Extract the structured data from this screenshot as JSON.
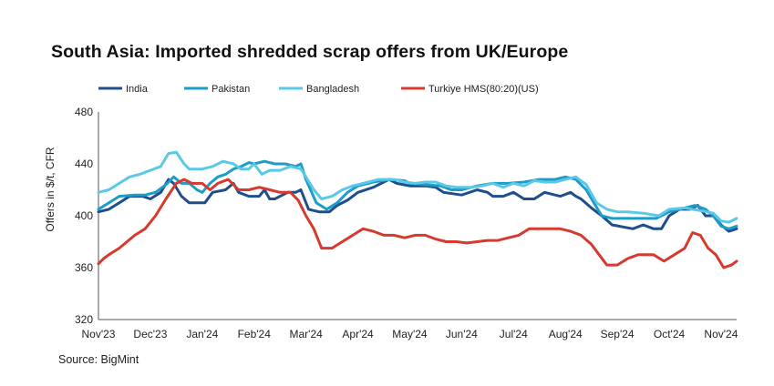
{
  "chart_data": {
    "type": "line",
    "title": "South Asia: Imported shredded scrap offers from UK/Europe",
    "ylabel": "Offers in $/t, CFR",
    "xlabel": "",
    "source": "Source: BigMint",
    "ylim": [
      320,
      480
    ],
    "yticks": [
      320,
      360,
      400,
      440,
      480
    ],
    "xlim": [
      0,
      12.3
    ],
    "xticks": [
      {
        "x": 0,
        "label": "Nov'23"
      },
      {
        "x": 1,
        "label": "Dec'23"
      },
      {
        "x": 2,
        "label": "Jan'24"
      },
      {
        "x": 3,
        "label": "Feb'24"
      },
      {
        "x": 4,
        "label": "Mar'24"
      },
      {
        "x": 5,
        "label": "Apr'24"
      },
      {
        "x": 6,
        "label": "May'24"
      },
      {
        "x": 7,
        "label": "Jun'24"
      },
      {
        "x": 8,
        "label": "Jul'24"
      },
      {
        "x": 9,
        "label": "Aug'24"
      },
      {
        "x": 10,
        "label": "Sep'24"
      },
      {
        "x": 11,
        "label": "Oct'24"
      },
      {
        "x": 12,
        "label": "Nov'24"
      }
    ],
    "legend_position": "top",
    "grid": false,
    "series": [
      {
        "name": "India",
        "color": "#1f4e8c",
        "points": [
          [
            0,
            403
          ],
          [
            0.2,
            405
          ],
          [
            0.4,
            410
          ],
          [
            0.6,
            415
          ],
          [
            0.85,
            415
          ],
          [
            1.0,
            413
          ],
          [
            1.2,
            418
          ],
          [
            1.35,
            428
          ],
          [
            1.45,
            425
          ],
          [
            1.6,
            415
          ],
          [
            1.75,
            410
          ],
          [
            2.05,
            410
          ],
          [
            2.2,
            418
          ],
          [
            2.45,
            420
          ],
          [
            2.6,
            425
          ],
          [
            2.7,
            418
          ],
          [
            2.9,
            415
          ],
          [
            3.1,
            415
          ],
          [
            3.2,
            420
          ],
          [
            3.3,
            413
          ],
          [
            3.4,
            413
          ],
          [
            3.5,
            415
          ],
          [
            3.65,
            418
          ],
          [
            3.8,
            418
          ],
          [
            3.9,
            420
          ],
          [
            4.05,
            405
          ],
          [
            4.25,
            403
          ],
          [
            4.45,
            403
          ],
          [
            4.6,
            408
          ],
          [
            4.8,
            412
          ],
          [
            5.0,
            418
          ],
          [
            5.3,
            422
          ],
          [
            5.6,
            428
          ],
          [
            5.75,
            425
          ],
          [
            6.0,
            423
          ],
          [
            6.3,
            423
          ],
          [
            6.5,
            422
          ],
          [
            6.65,
            418
          ],
          [
            7.0,
            416
          ],
          [
            7.3,
            420
          ],
          [
            7.5,
            418
          ],
          [
            7.6,
            415
          ],
          [
            7.8,
            415
          ],
          [
            8.0,
            418
          ],
          [
            8.2,
            413
          ],
          [
            8.4,
            413
          ],
          [
            8.6,
            418
          ],
          [
            8.9,
            415
          ],
          [
            9.1,
            418
          ],
          [
            9.2,
            415
          ],
          [
            9.3,
            413
          ],
          [
            9.5,
            406
          ],
          [
            9.7,
            400
          ],
          [
            9.9,
            393
          ],
          [
            10.3,
            390
          ],
          [
            10.5,
            393
          ],
          [
            10.7,
            390
          ],
          [
            10.85,
            390
          ],
          [
            11.0,
            400
          ],
          [
            11.2,
            405
          ],
          [
            11.4,
            405
          ],
          [
            11.55,
            408
          ],
          [
            11.7,
            400
          ],
          [
            11.85,
            400
          ],
          [
            12.0,
            393
          ],
          [
            12.15,
            388
          ],
          [
            12.3,
            390
          ]
        ]
      },
      {
        "name": "Pakistan",
        "color": "#1e9cc9",
        "points": [
          [
            0,
            405
          ],
          [
            0.2,
            410
          ],
          [
            0.4,
            415
          ],
          [
            0.7,
            416
          ],
          [
            0.9,
            416
          ],
          [
            1.1,
            418
          ],
          [
            1.3,
            424
          ],
          [
            1.45,
            430
          ],
          [
            1.6,
            425
          ],
          [
            1.75,
            425
          ],
          [
            1.9,
            420
          ],
          [
            2.0,
            418
          ],
          [
            2.15,
            425
          ],
          [
            2.3,
            430
          ],
          [
            2.45,
            432
          ],
          [
            2.6,
            436
          ],
          [
            2.75,
            438
          ],
          [
            2.9,
            441
          ],
          [
            3.0,
            440
          ],
          [
            3.2,
            442
          ],
          [
            3.4,
            440
          ],
          [
            3.6,
            440
          ],
          [
            3.8,
            438
          ],
          [
            3.9,
            440
          ],
          [
            4.0,
            428
          ],
          [
            4.2,
            410
          ],
          [
            4.4,
            405
          ],
          [
            4.6,
            410
          ],
          [
            4.8,
            418
          ],
          [
            5.0,
            423
          ],
          [
            5.3,
            426
          ],
          [
            5.6,
            428
          ],
          [
            5.9,
            427
          ],
          [
            6.0,
            425
          ],
          [
            6.3,
            424
          ],
          [
            6.6,
            423
          ],
          [
            6.8,
            420
          ],
          [
            7.0,
            420
          ],
          [
            7.3,
            423
          ],
          [
            7.6,
            425
          ],
          [
            7.9,
            425
          ],
          [
            8.2,
            426
          ],
          [
            8.5,
            428
          ],
          [
            8.8,
            428
          ],
          [
            9.0,
            430
          ],
          [
            9.2,
            428
          ],
          [
            9.4,
            420
          ],
          [
            9.55,
            410
          ],
          [
            9.7,
            400
          ],
          [
            9.9,
            398
          ],
          [
            10.2,
            398
          ],
          [
            10.5,
            398
          ],
          [
            10.75,
            398
          ],
          [
            11.0,
            403
          ],
          [
            11.3,
            406
          ],
          [
            11.5,
            408
          ],
          [
            11.7,
            405
          ],
          [
            11.85,
            400
          ],
          [
            12.0,
            392
          ],
          [
            12.15,
            390
          ],
          [
            12.3,
            392
          ]
        ]
      },
      {
        "name": "Bangladesh",
        "color": "#5bc8e8",
        "points": [
          [
            0,
            418
          ],
          [
            0.2,
            420
          ],
          [
            0.4,
            425
          ],
          [
            0.6,
            430
          ],
          [
            0.8,
            432
          ],
          [
            1.0,
            435
          ],
          [
            1.2,
            438
          ],
          [
            1.35,
            448
          ],
          [
            1.5,
            449
          ],
          [
            1.65,
            440
          ],
          [
            1.75,
            436
          ],
          [
            2.0,
            436
          ],
          [
            2.2,
            438
          ],
          [
            2.4,
            442
          ],
          [
            2.6,
            440
          ],
          [
            2.75,
            436
          ],
          [
            2.9,
            436
          ],
          [
            3.0,
            440
          ],
          [
            3.15,
            432
          ],
          [
            3.3,
            435
          ],
          [
            3.5,
            435
          ],
          [
            3.7,
            438
          ],
          [
            3.9,
            436
          ],
          [
            4.0,
            430
          ],
          [
            4.15,
            420
          ],
          [
            4.3,
            413
          ],
          [
            4.5,
            415
          ],
          [
            4.7,
            420
          ],
          [
            4.9,
            423
          ],
          [
            5.1,
            425
          ],
          [
            5.4,
            428
          ],
          [
            5.7,
            428
          ],
          [
            5.9,
            426
          ],
          [
            6.1,
            425
          ],
          [
            6.3,
            426
          ],
          [
            6.5,
            426
          ],
          [
            6.7,
            423
          ],
          [
            6.9,
            422
          ],
          [
            7.2,
            422
          ],
          [
            7.4,
            423
          ],
          [
            7.6,
            425
          ],
          [
            7.8,
            422
          ],
          [
            8.0,
            425
          ],
          [
            8.2,
            423
          ],
          [
            8.4,
            427
          ],
          [
            8.6,
            426
          ],
          [
            8.8,
            426
          ],
          [
            9.0,
            428
          ],
          [
            9.2,
            430
          ],
          [
            9.4,
            424
          ],
          [
            9.6,
            410
          ],
          [
            9.8,
            405
          ],
          [
            10.0,
            403
          ],
          [
            10.2,
            403
          ],
          [
            10.5,
            402
          ],
          [
            10.8,
            400
          ],
          [
            11.0,
            405
          ],
          [
            11.3,
            406
          ],
          [
            11.6,
            404
          ],
          [
            11.85,
            402
          ],
          [
            12.0,
            396
          ],
          [
            12.15,
            395
          ],
          [
            12.3,
            398
          ]
        ]
      },
      {
        "name": "Turkiye HMS(80:20)(US)",
        "color": "#d63a2f",
        "points": [
          [
            0,
            363
          ],
          [
            0.1,
            367
          ],
          [
            0.2,
            370
          ],
          [
            0.4,
            375
          ],
          [
            0.55,
            380
          ],
          [
            0.7,
            385
          ],
          [
            0.9,
            390
          ],
          [
            1.1,
            400
          ],
          [
            1.3,
            413
          ],
          [
            1.5,
            425
          ],
          [
            1.65,
            428
          ],
          [
            1.8,
            425
          ],
          [
            2.0,
            425
          ],
          [
            2.15,
            420
          ],
          [
            2.3,
            425
          ],
          [
            2.5,
            428
          ],
          [
            2.7,
            420
          ],
          [
            2.9,
            420
          ],
          [
            3.1,
            422
          ],
          [
            3.3,
            420
          ],
          [
            3.5,
            418
          ],
          [
            3.7,
            418
          ],
          [
            3.85,
            412
          ],
          [
            4.0,
            400
          ],
          [
            4.15,
            390
          ],
          [
            4.3,
            375
          ],
          [
            4.5,
            375
          ],
          [
            4.7,
            380
          ],
          [
            4.9,
            385
          ],
          [
            5.1,
            390
          ],
          [
            5.3,
            388
          ],
          [
            5.5,
            385
          ],
          [
            5.7,
            385
          ],
          [
            5.9,
            383
          ],
          [
            6.1,
            385
          ],
          [
            6.3,
            385
          ],
          [
            6.5,
            382
          ],
          [
            6.7,
            380
          ],
          [
            6.9,
            380
          ],
          [
            7.1,
            379
          ],
          [
            7.3,
            380
          ],
          [
            7.5,
            381
          ],
          [
            7.7,
            381
          ],
          [
            7.9,
            383
          ],
          [
            8.1,
            385
          ],
          [
            8.3,
            390
          ],
          [
            8.5,
            390
          ],
          [
            8.7,
            390
          ],
          [
            8.9,
            390
          ],
          [
            9.1,
            388
          ],
          [
            9.3,
            385
          ],
          [
            9.5,
            378
          ],
          [
            9.65,
            370
          ],
          [
            9.8,
            362
          ],
          [
            10.0,
            362
          ],
          [
            10.2,
            367
          ],
          [
            10.4,
            370
          ],
          [
            10.7,
            370
          ],
          [
            10.9,
            365
          ],
          [
            11.1,
            370
          ],
          [
            11.3,
            375
          ],
          [
            11.45,
            387
          ],
          [
            11.6,
            385
          ],
          [
            11.75,
            375
          ],
          [
            11.9,
            370
          ],
          [
            12.05,
            360
          ],
          [
            12.2,
            362
          ],
          [
            12.3,
            365
          ]
        ]
      }
    ]
  }
}
